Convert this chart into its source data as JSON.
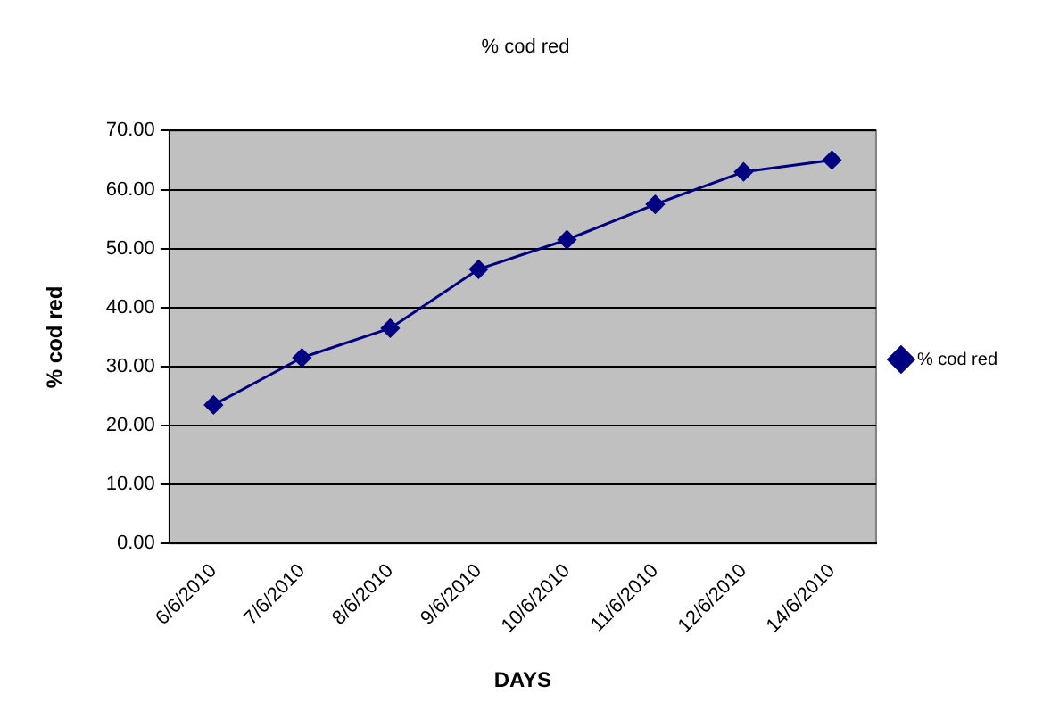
{
  "chart_data": {
    "type": "line",
    "title": "% cod red",
    "xlabel": "DAYS",
    "ylabel": "% cod red",
    "categories": [
      "6/6/2010",
      "7/6/2010",
      "8/6/2010",
      "9/6/2010",
      "10/6/2010",
      "11/6/2010",
      "12/6/2010",
      "14/6/2010"
    ],
    "series": [
      {
        "name": "% cod red",
        "color": "#000080",
        "values": [
          23.5,
          31.5,
          36.5,
          46.5,
          51.5,
          57.5,
          63,
          65
        ]
      }
    ],
    "ylim": [
      0,
      70
    ],
    "yticks": [
      {
        "value": 0,
        "label": "0.00"
      },
      {
        "value": 10,
        "label": "10.00"
      },
      {
        "value": 20,
        "label": "20.00"
      },
      {
        "value": 30,
        "label": "30.00"
      },
      {
        "value": 40,
        "label": "40.00"
      },
      {
        "value": 50,
        "label": "50.00"
      },
      {
        "value": 60,
        "label": "60.00"
      },
      {
        "value": 70,
        "label": "70.00"
      }
    ],
    "grid": "y",
    "legend": "right",
    "marker": "diamond",
    "line_style": "solid"
  }
}
